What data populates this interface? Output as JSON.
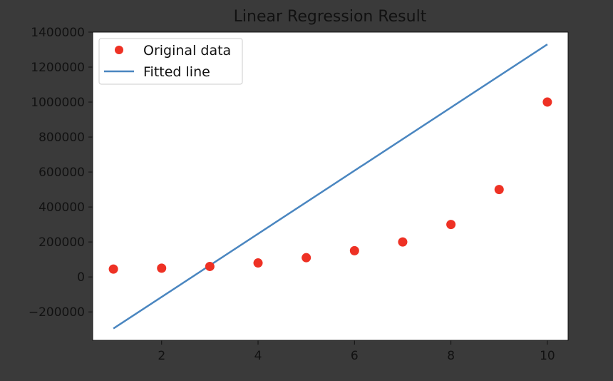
{
  "chart_data": {
    "type": "scatter",
    "title": "Linear Regression Result",
    "xlabel": "",
    "ylabel": "",
    "xlim": [
      0.57,
      10.43
    ],
    "ylim": [
      -362500,
      1400000
    ],
    "x_ticks": [
      2,
      4,
      6,
      8,
      10
    ],
    "y_ticks": [
      -200000,
      0,
      200000,
      400000,
      600000,
      800000,
      1000000,
      1200000,
      1400000
    ],
    "x_tick_labels": [
      "2",
      "4",
      "6",
      "8",
      "10"
    ],
    "y_tick_labels": [
      "−200000",
      "0",
      "200000",
      "400000",
      "600000",
      "800000",
      "1000000",
      "1200000",
      "1400000"
    ],
    "grid": false,
    "legend_position": "top-left",
    "series": [
      {
        "name": "Original data",
        "kind": "scatter",
        "color": "#ee3124",
        "x": [
          1,
          2,
          3,
          4,
          5,
          6,
          7,
          8,
          9,
          10
        ],
        "y": [
          45000,
          50000,
          60000,
          80000,
          110000,
          150000,
          200000,
          300000,
          500000,
          1000000
        ]
      },
      {
        "name": "Fitted line",
        "kind": "line",
        "color": "#4a86c0",
        "x": [
          1,
          10
        ],
        "y": [
          -295000,
          1330000
        ]
      }
    ]
  },
  "colors": {
    "background": "#3a3a3a",
    "plot_area": "#ffffff",
    "axis_text": "#111111"
  }
}
